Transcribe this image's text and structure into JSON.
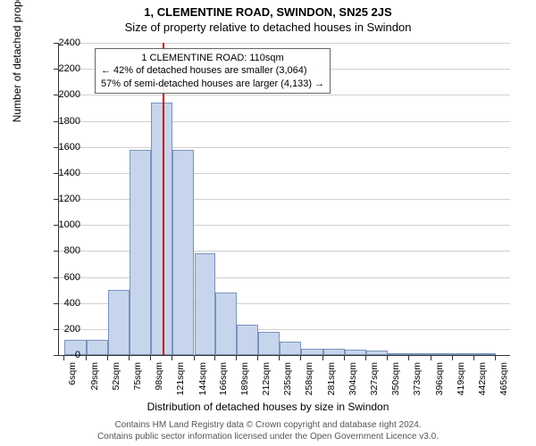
{
  "title_main": "1, CLEMENTINE ROAD, SWINDON, SN25 2JS",
  "title_sub": "Size of property relative to detached houses in Swindon",
  "y_axis_label": "Number of detached properties",
  "x_axis_label": "Distribution of detached houses by size in Swindon",
  "footer_line1": "Contains HM Land Registry data © Crown copyright and database right 2024.",
  "footer_line2": "Contains public sector information licensed under the Open Government Licence v3.0.",
  "chart": {
    "type": "histogram",
    "background_color": "#ffffff",
    "grid_color": "#d0d0d0",
    "axis_color": "#333333",
    "bar_fill": "#c7d5ec",
    "bar_border": "#7a93bd",
    "marker_color": "#cc0000",
    "marker_value": 110,
    "ylim": [
      0,
      2400
    ],
    "ytick_step": 200,
    "y_ticks": [
      0,
      200,
      400,
      600,
      800,
      1000,
      1200,
      1400,
      1600,
      1800,
      2000,
      2200,
      2400
    ],
    "x_min": 0,
    "x_max": 480,
    "x_tick_labels": [
      "6sqm",
      "29sqm",
      "52sqm",
      "75sqm",
      "98sqm",
      "121sqm",
      "144sqm",
      "166sqm",
      "189sqm",
      "212sqm",
      "235sqm",
      "258sqm",
      "281sqm",
      "304sqm",
      "327sqm",
      "350sqm",
      "373sqm",
      "396sqm",
      "419sqm",
      "442sqm",
      "465sqm"
    ],
    "x_tick_positions": [
      6,
      29,
      52,
      75,
      98,
      121,
      144,
      166,
      189,
      212,
      235,
      258,
      281,
      304,
      327,
      350,
      373,
      396,
      419,
      442,
      465
    ],
    "bars": [
      {
        "x0": 6,
        "x1": 29,
        "value": 120
      },
      {
        "x0": 29,
        "x1": 52,
        "value": 120
      },
      {
        "x0": 52,
        "x1": 75,
        "value": 500
      },
      {
        "x0": 75,
        "x1": 98,
        "value": 1580
      },
      {
        "x0": 98,
        "x1": 121,
        "value": 1940
      },
      {
        "x0": 121,
        "x1": 144,
        "value": 1580
      },
      {
        "x0": 144,
        "x1": 166,
        "value": 780
      },
      {
        "x0": 166,
        "x1": 189,
        "value": 480
      },
      {
        "x0": 189,
        "x1": 212,
        "value": 230
      },
      {
        "x0": 212,
        "x1": 235,
        "value": 180
      },
      {
        "x0": 235,
        "x1": 258,
        "value": 100
      },
      {
        "x0": 258,
        "x1": 281,
        "value": 50
      },
      {
        "x0": 281,
        "x1": 304,
        "value": 45
      },
      {
        "x0": 304,
        "x1": 327,
        "value": 40
      },
      {
        "x0": 327,
        "x1": 350,
        "value": 35
      },
      {
        "x0": 350,
        "x1": 373,
        "value": 10
      },
      {
        "x0": 373,
        "x1": 396,
        "value": 8
      },
      {
        "x0": 396,
        "x1": 419,
        "value": 6
      },
      {
        "x0": 419,
        "x1": 442,
        "value": 5
      },
      {
        "x0": 442,
        "x1": 465,
        "value": 4
      }
    ],
    "annotation": {
      "line1": "1 CLEMENTINE ROAD: 110sqm",
      "line2": "← 42% of detached houses are smaller (3,064)",
      "line3": "57% of semi-detached houses are larger (4,133) →",
      "border_color": "#666666",
      "bg_color": "rgba(255,255,255,0.92)",
      "fontsize": 11
    }
  }
}
